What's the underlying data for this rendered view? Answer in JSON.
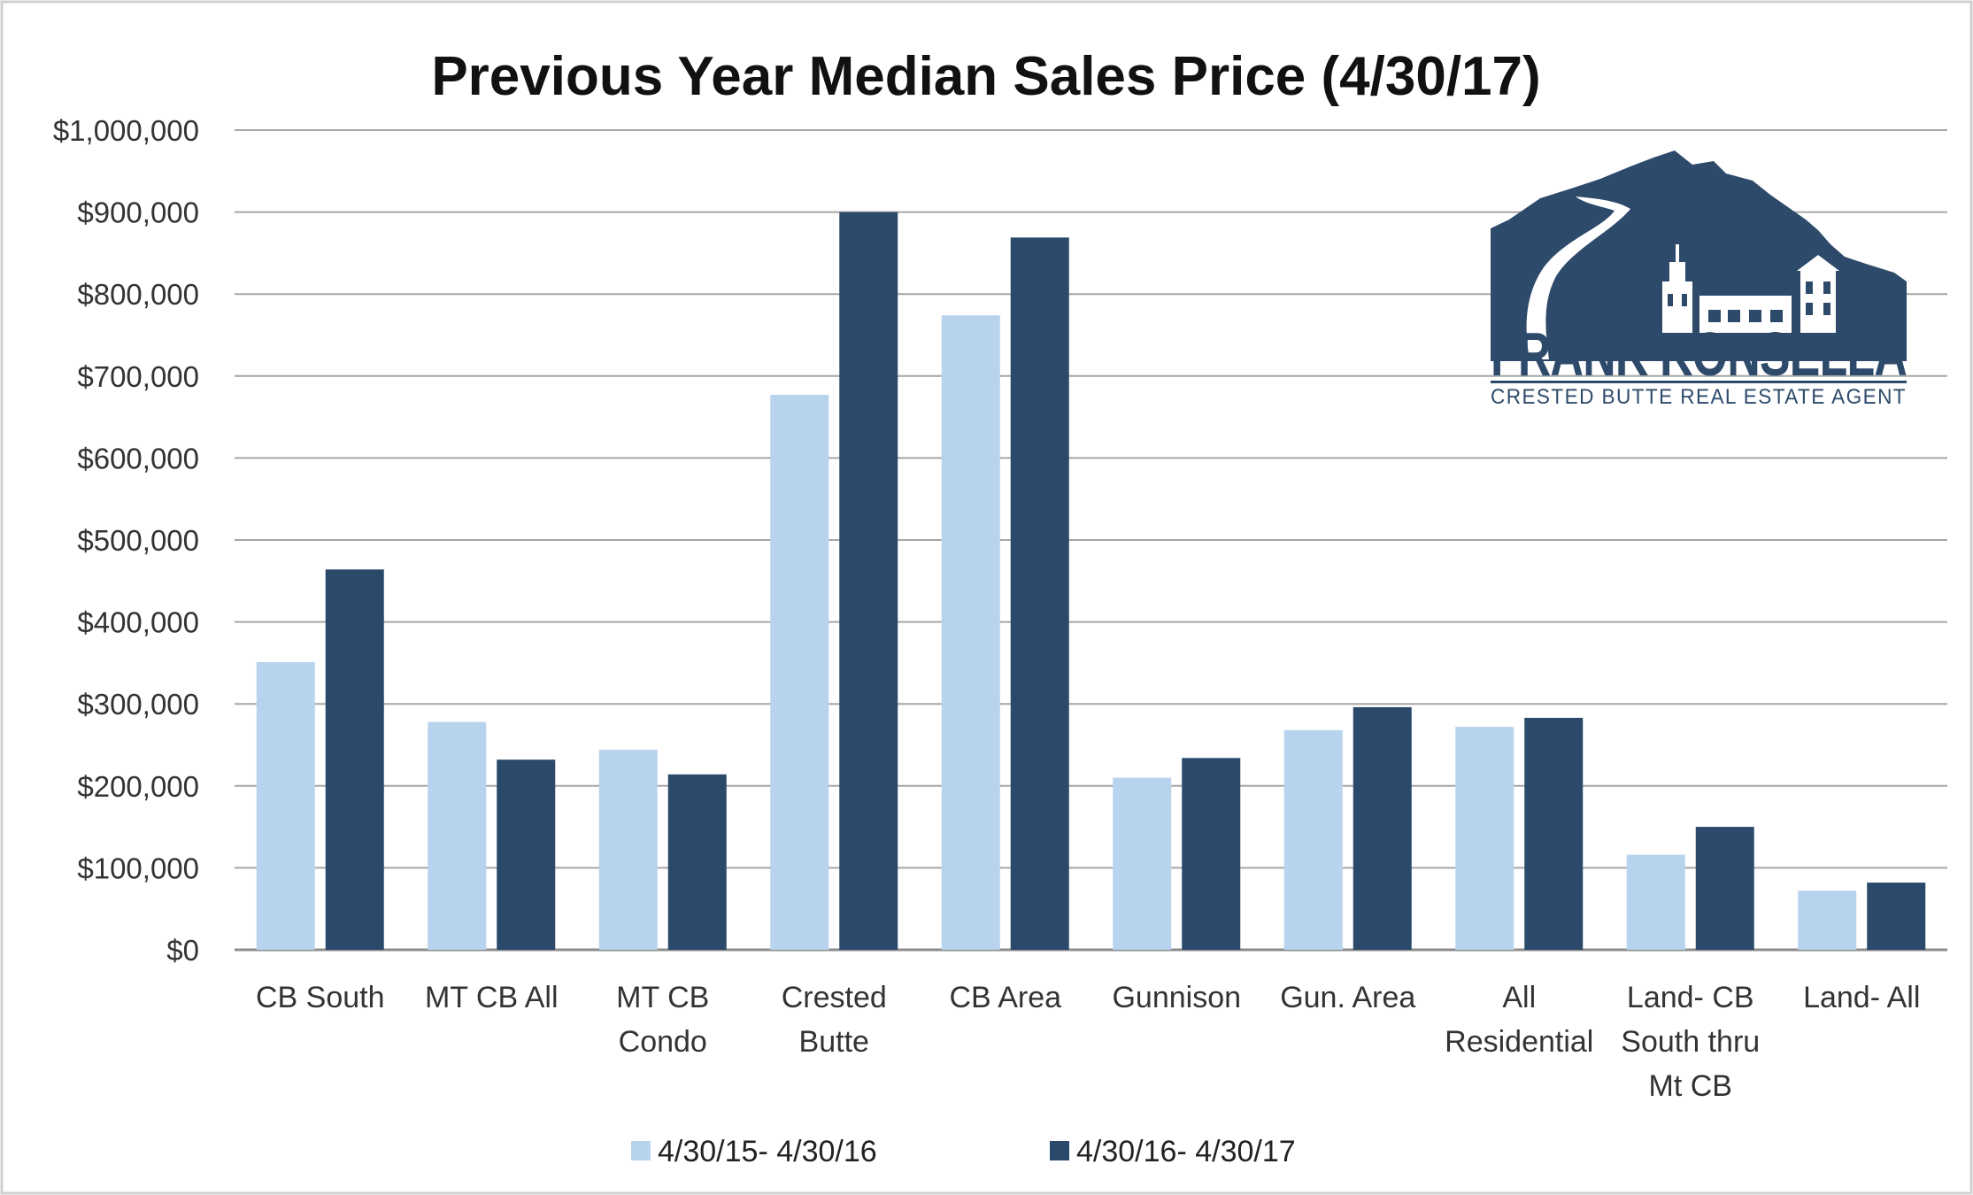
{
  "chart_data": {
    "type": "bar",
    "title": "Previous Year Median Sales Price (4/30/17)",
    "xlabel": "",
    "ylabel": "",
    "ylim": [
      0,
      1000000
    ],
    "y_ticks": [
      0,
      100000,
      200000,
      300000,
      400000,
      500000,
      600000,
      700000,
      800000,
      900000,
      1000000
    ],
    "y_tick_labels": [
      "$0",
      "$100,000",
      "$200,000",
      "$300,000",
      "$400,000",
      "$500,000",
      "$600,000",
      "$700,000",
      "$800,000",
      "$900,000",
      "$1,000,000"
    ],
    "grid": true,
    "legend_position": "bottom",
    "categories": [
      "CB South",
      "MT CB All",
      "MT CB Condo",
      "Crested Butte",
      "CB Area",
      "Gunnison",
      "Gun. Area",
      "All Residential",
      "Land- CB South thru Mt CB",
      "Land- All"
    ],
    "category_lines": [
      [
        "CB South"
      ],
      [
        "MT CB All"
      ],
      [
        "MT CB",
        "Condo"
      ],
      [
        "Crested",
        "Butte"
      ],
      [
        "CB Area"
      ],
      [
        "Gunnison"
      ],
      [
        "Gun. Area"
      ],
      [
        "All",
        "Residential"
      ],
      [
        "Land- CB",
        "South thru",
        "Mt CB"
      ],
      [
        "Land- All"
      ]
    ],
    "series": [
      {
        "name": "4/30/15- 4/30/16",
        "color": "#b7d3ee",
        "values": [
          351000,
          278000,
          244000,
          677000,
          774000,
          210000,
          268000,
          272000,
          116000,
          72000
        ]
      },
      {
        "name": "4/30/16- 4/30/17",
        "color": "#2b4a6b",
        "values": [
          464000,
          232000,
          214000,
          900000,
          869000,
          234000,
          296000,
          283000,
          150000,
          82000
        ]
      }
    ]
  },
  "logo": {
    "name": "FRANK KONSELLA",
    "tagline": "CRESTED BUTTE REAL ESTATE AGENT",
    "color": "#2e4a6b"
  }
}
